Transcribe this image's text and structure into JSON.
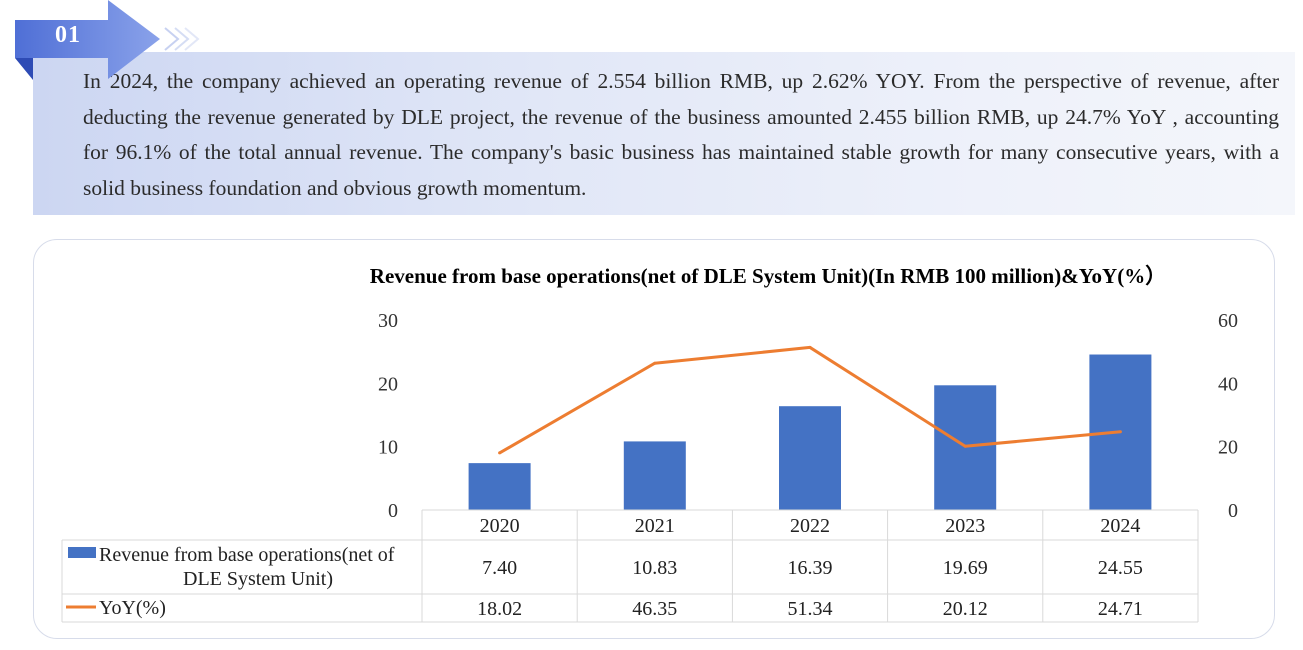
{
  "section": {
    "number": "01"
  },
  "intro": {
    "text": "In 2024, the company achieved an operating revenue of 2.554 billion RMB, up 2.62% YOY. From the perspective of revenue, after deducting the revenue generated by DLE project, the revenue of the business amounted 2.455 billion RMB, up 24.7% YoY , accounting for 96.1% of the total annual revenue. The company's basic business has maintained stable growth for many consecutive years, with a solid business foundation and obvious growth momentum."
  },
  "colors": {
    "bar": "#4472c4",
    "line": "#ed7d31",
    "accent": "#5b78d9"
  },
  "chart_data": {
    "type": "bar",
    "title": "Revenue from base operations(net of DLE System Unit)(In RMB 100 million)&YoY(%）",
    "categories": [
      "2020",
      "2021",
      "2022",
      "2023",
      "2024"
    ],
    "series": [
      {
        "name": "Revenue from base operations(net of DLE System Unit)",
        "type": "bar",
        "axis": "left",
        "values": [
          7.4,
          10.83,
          16.39,
          19.69,
          24.55
        ],
        "labels": [
          "7.40",
          "10.83",
          "16.39",
          "19.69",
          "24.55"
        ]
      },
      {
        "name": "YoY(%)",
        "type": "line",
        "axis": "right",
        "values": [
          18.02,
          46.35,
          51.34,
          20.12,
          24.71
        ],
        "labels": [
          "18.02",
          "46.35",
          "51.34",
          "20.12",
          "24.71"
        ]
      }
    ],
    "y_left": {
      "ylim": [
        0,
        30
      ],
      "ticks": [
        "0",
        "10",
        "20",
        "30"
      ]
    },
    "y_right": {
      "ylim": [
        0,
        60
      ],
      "ticks": [
        "0",
        "20",
        "40",
        "60"
      ]
    },
    "grid": false,
    "legend": "data-table"
  }
}
